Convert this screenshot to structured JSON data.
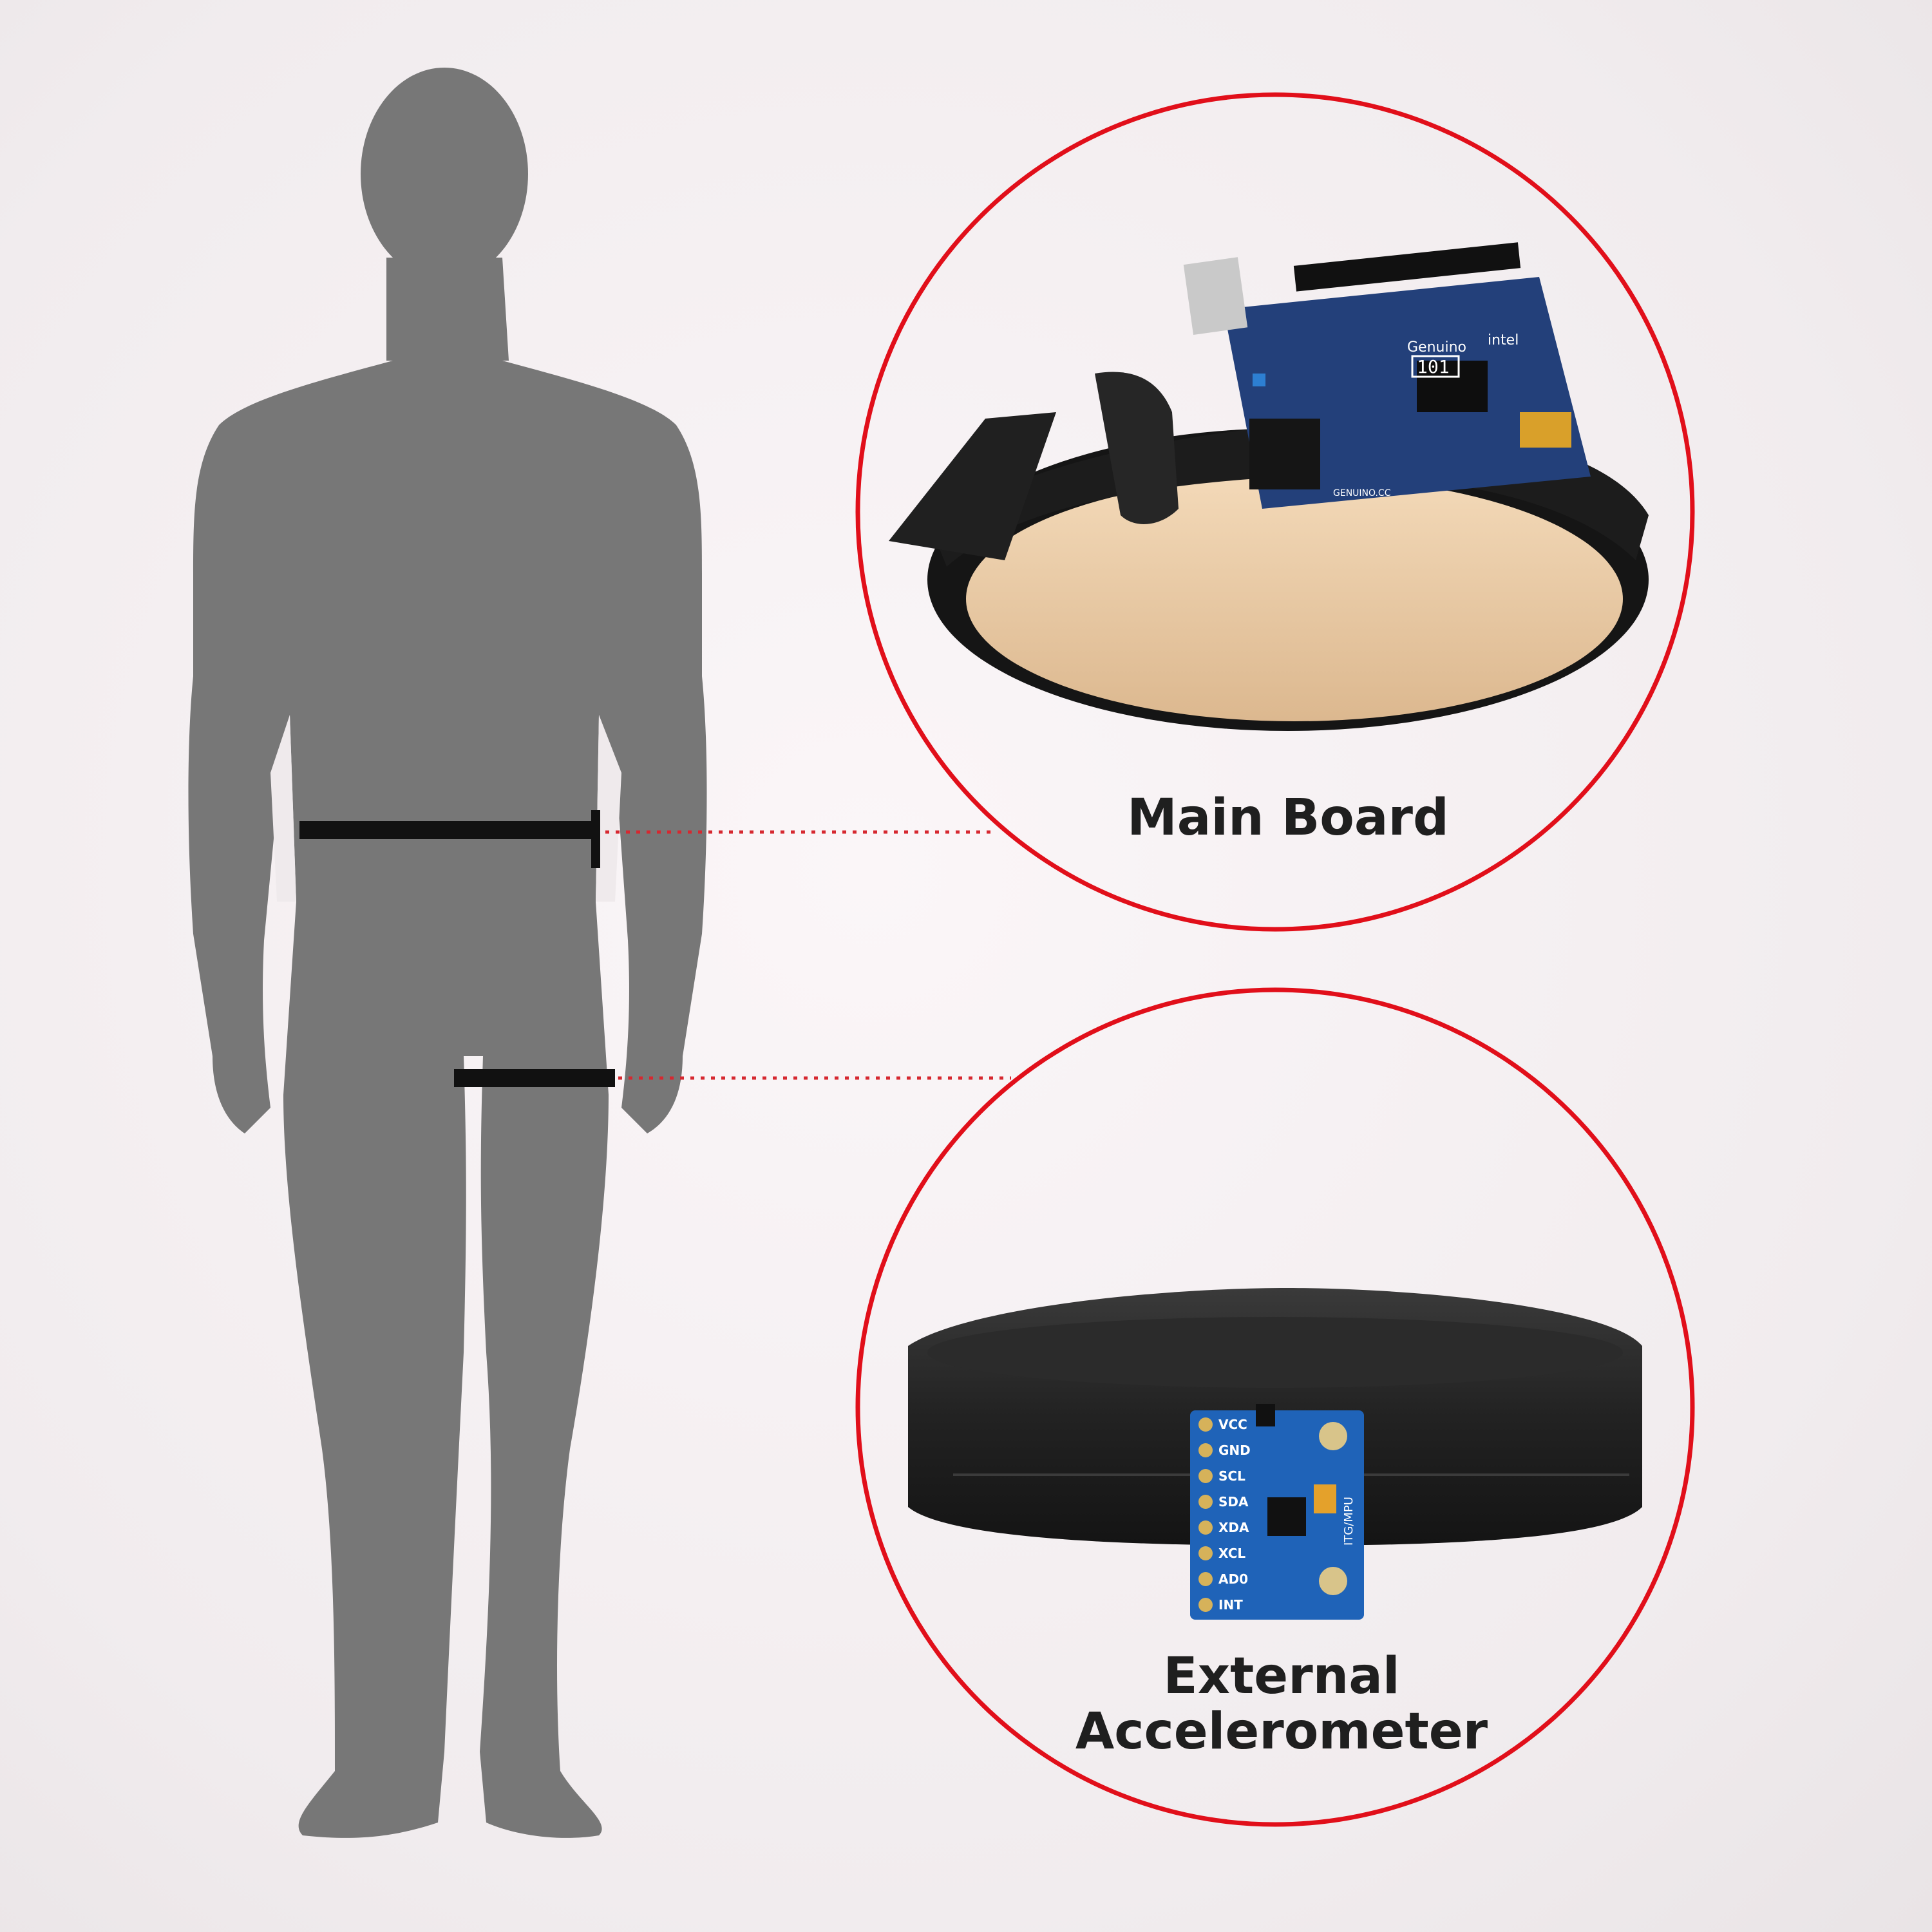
{
  "callouts": [
    {
      "label": "Main Board"
    },
    {
      "label": "External\nAccelerometer"
    }
  ],
  "sensor_pins": [
    "VCC",
    "GND",
    "SCL",
    "SDA",
    "XDA",
    "XCL",
    "AD0",
    "INT"
  ],
  "board_markings": {
    "model": "101",
    "brand": "Genuino",
    "chip": "intel",
    "footer": "GENUINO.CC",
    "module": "ITG/MPU"
  },
  "colors": {
    "body": "#777777",
    "callout_ring": "#e10f1a",
    "leader": "#d62830",
    "strap": "#111111",
    "board": "#23407a",
    "leather_inner": "#e9c9a3"
  },
  "icons": {
    "figure": "human-silhouette-icon",
    "board": "microcontroller-board-icon",
    "sensor": "accelerometer-module-icon"
  }
}
